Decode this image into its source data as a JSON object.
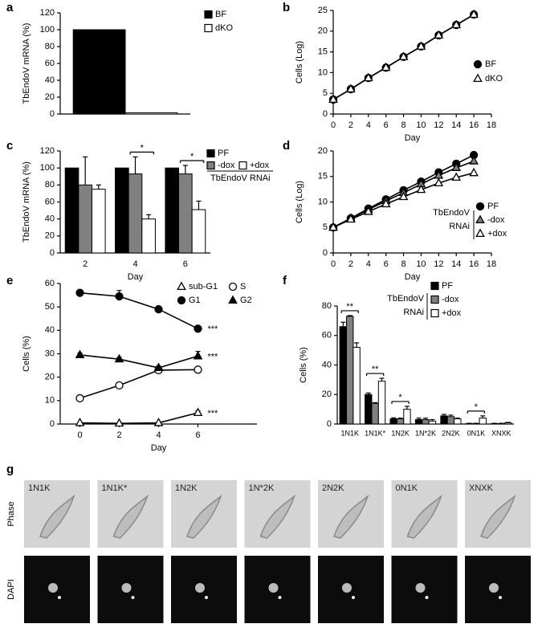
{
  "chart_data": [
    {
      "panel": "a",
      "type": "bar",
      "ylabel": "TbEndoV mRNA (%)",
      "categories": [
        null
      ],
      "series": [
        {
          "name": "BF",
          "color": "#000000",
          "values": [
            100
          ]
        },
        {
          "name": "dKO",
          "color": "#ffffff",
          "values": [
            1.5
          ]
        }
      ],
      "ylim": [
        0,
        120
      ],
      "yticks": [
        0,
        20,
        40,
        60,
        80,
        100,
        120
      ]
    },
    {
      "panel": "b",
      "type": "line",
      "ylabel": "Cells (Log)",
      "xlabel": "Day",
      "x": [
        0,
        2,
        4,
        6,
        8,
        10,
        12,
        14,
        16
      ],
      "series": [
        {
          "name": "BF",
          "color": "#000000",
          "marker": "circle",
          "values": [
            3.5,
            6,
            8.7,
            11.2,
            13.8,
            16.3,
            19,
            21.5,
            24
          ]
        },
        {
          "name": "dKO",
          "color": "#ffffff",
          "marker": "triangle",
          "values": [
            3.5,
            6,
            8.7,
            11.2,
            13.8,
            16.3,
            19,
            21.5,
            24
          ]
        }
      ],
      "xlim": [
        0,
        18
      ],
      "xticks": [
        0,
        2,
        4,
        6,
        8,
        10,
        12,
        14,
        16,
        18
      ],
      "ylim": [
        0,
        25
      ],
      "yticks": [
        0,
        5,
        10,
        15,
        20,
        25
      ]
    },
    {
      "panel": "c",
      "type": "bar",
      "ylabel": "TbEndoV mRNA (%)",
      "xlabel": "Day",
      "categories": [
        "2",
        "4",
        "6"
      ],
      "series": [
        {
          "name": "PF",
          "color": "#000000",
          "values": [
            100,
            100,
            100
          ]
        },
        {
          "name": "-dox",
          "color": "#808080",
          "values": [
            80,
            93,
            93
          ],
          "errors": [
            33,
            20,
            10
          ]
        },
        {
          "name": "+dox",
          "color": "#ffffff",
          "values": [
            75,
            40,
            51
          ],
          "errors": [
            5,
            5,
            10
          ]
        }
      ],
      "legend_group": [
        "TbEndoV RNAi"
      ],
      "significance": [
        {
          "label": "*",
          "category": 1,
          "between": [
            1,
            2
          ]
        },
        {
          "label": "*",
          "category": 2,
          "between": [
            1,
            2
          ]
        }
      ],
      "ylim": [
        0,
        120
      ],
      "yticks": [
        0,
        20,
        40,
        60,
        80,
        100,
        120
      ]
    },
    {
      "panel": "d",
      "type": "line",
      "ylabel": "Cells (Log)",
      "xlabel": "Day",
      "x": [
        0,
        2,
        4,
        6,
        8,
        10,
        12,
        14,
        16
      ],
      "series": [
        {
          "name": "PF",
          "color": "#000000",
          "marker": "circle",
          "values": [
            5,
            6.8,
            8.7,
            10.5,
            12.3,
            14,
            15.8,
            17.5,
            19.2
          ]
        },
        {
          "name": "-dox",
          "color": "#808080",
          "marker": "triangle",
          "values": [
            5,
            6.8,
            8.5,
            10.2,
            11.8,
            13.5,
            15.2,
            16.7,
            18
          ]
        },
        {
          "name": "+dox",
          "color": "#ffffff",
          "marker": "triangle",
          "values": [
            5,
            6.6,
            8.1,
            9.6,
            11,
            12.4,
            13.7,
            14.8,
            15.7
          ]
        }
      ],
      "legend_group": [
        "TbEndoV",
        "RNAi"
      ],
      "xlim": [
        0,
        18
      ],
      "xticks": [
        0,
        2,
        4,
        6,
        8,
        10,
        12,
        14,
        16,
        18
      ],
      "ylim": [
        0,
        20
      ],
      "yticks": [
        0,
        5,
        10,
        15,
        20
      ]
    },
    {
      "panel": "e",
      "type": "line",
      "ylabel": "Cells (%)",
      "xlabel": "Day",
      "x": [
        0,
        2,
        4,
        6
      ],
      "series": [
        {
          "name": "sub-G1",
          "color": "#ffffff",
          "marker": "triangle",
          "values": [
            0.5,
            0.3,
            0.5,
            4.8
          ],
          "errors": [
            0.3,
            0.3,
            0.3,
            0.8
          ]
        },
        {
          "name": "S",
          "color": "#ffffff",
          "marker": "circle",
          "values": [
            11,
            16.5,
            23,
            23.2
          ],
          "errors": [
            0.8,
            0.8,
            0.8,
            0.8
          ]
        },
        {
          "name": "G1",
          "color": "#000000",
          "marker": "circle",
          "values": [
            56,
            54.5,
            49,
            40.7
          ],
          "errors": [
            0.8,
            2.5,
            0.8,
            1
          ]
        },
        {
          "name": "G2",
          "color": "#000000",
          "marker": "triangle",
          "values": [
            29.5,
            27.7,
            24,
            29
          ],
          "errors": [
            0.8,
            0.8,
            0.8,
            2
          ]
        }
      ],
      "annotations": [
        {
          "text": "***",
          "series": 2
        },
        {
          "text": "***",
          "series": 3
        },
        {
          "text": "***",
          "series": 0
        }
      ],
      "xlim": [
        -1,
        9
      ],
      "xticks": [
        0,
        2,
        4,
        6
      ],
      "ylim": [
        0,
        60
      ],
      "yticks": [
        0,
        10,
        20,
        30,
        40,
        50,
        60
      ]
    },
    {
      "panel": "f",
      "type": "bar",
      "ylabel": "Cells (%)",
      "categories": [
        "1N1K",
        "1N1K*",
        "1N2K",
        "1N*2K",
        "2N2K",
        "0N1K",
        "XNXK"
      ],
      "series": [
        {
          "name": "PF",
          "color": "#000000",
          "values": [
            66,
            20,
            3.5,
            3,
            5.5,
            0.3,
            0.3
          ],
          "errors": [
            3,
            1,
            0.7,
            1,
            1,
            0.2,
            0.2
          ]
        },
        {
          "name": "-dox",
          "color": "#808080",
          "values": [
            73,
            14,
            3.5,
            3,
            5,
            0.3,
            0.3
          ],
          "errors": [
            0.5,
            0.5,
            0.5,
            1,
            1,
            0.2,
            0.2
          ]
        },
        {
          "name": "+dox",
          "color": "#ffffff",
          "values": [
            52,
            29,
            10,
            2,
            3.5,
            4,
            0.8
          ],
          "errors": [
            3,
            2,
            2,
            1,
            0.5,
            1.5,
            0.3
          ]
        }
      ],
      "legend_group": [
        "TbEndoV",
        "RNAi"
      ],
      "significance": [
        {
          "label": "**",
          "category": 0,
          "between": [
            0,
            2
          ]
        },
        {
          "label": "**",
          "category": 1,
          "between": [
            0,
            2
          ]
        },
        {
          "label": "*",
          "category": 2,
          "between": [
            0,
            2
          ]
        },
        {
          "label": "*",
          "category": 5,
          "between": [
            0,
            2
          ]
        }
      ],
      "ylim": [
        0,
        80
      ],
      "yticks": [
        0,
        20,
        40,
        60,
        80
      ]
    }
  ],
  "micrographs": {
    "panel": "g",
    "rows": [
      "Phase",
      "DAPI"
    ],
    "columns": [
      "1N1K",
      "1N1K*",
      "1N2K",
      "1N*2K",
      "2N2K",
      "0N1K",
      "XNXK"
    ]
  }
}
